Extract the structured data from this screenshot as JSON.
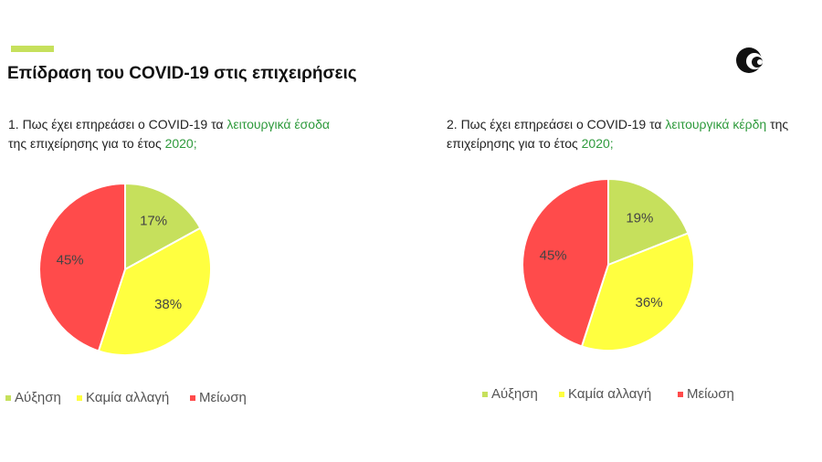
{
  "title": "Επίδραση του COVID-19 στις επιχειρήσεις",
  "chart_data": [
    {
      "type": "pie",
      "title": [
        {
          "text": "1. Πως έχει επηρεάσει ο COVID-19 τα ",
          "color": "#222222"
        },
        {
          "text": "λειτουργικά έσοδα",
          "color": "#2e9a3c"
        },
        {
          "text": " της επιχείρησης για το έτος ",
          "color": "#222222"
        },
        {
          "text": "2020;",
          "color": "#2e9a3c"
        }
      ],
      "categories": [
        "Αύξηση",
        "Καμία αλλαγή",
        "Μείωση"
      ],
      "values": [
        17,
        38,
        45
      ],
      "value_labels": [
        "17%",
        "38%",
        "45%"
      ],
      "colors": [
        "#c6e05c",
        "#ffff40",
        "#ff4b4b"
      ]
    },
    {
      "type": "pie",
      "title": [
        {
          "text": "2. Πως έχει επηρεάσει ο COVID-19 τα ",
          "color": "#222222"
        },
        {
          "text": "λειτουργικά κέρδη",
          "color": "#2e9a3c"
        },
        {
          "text": " της επιχείρησης για το έτος ",
          "color": "#222222"
        },
        {
          "text": "2020;",
          "color": "#2e9a3c"
        }
      ],
      "categories": [
        "Αύξηση",
        "Καμία αλλαγή",
        "Μείωση"
      ],
      "values": [
        19,
        36,
        45
      ],
      "value_labels": [
        "19%",
        "36%",
        "45%"
      ],
      "colors": [
        "#c6e05c",
        "#ffff40",
        "#ff4b4b"
      ]
    }
  ]
}
